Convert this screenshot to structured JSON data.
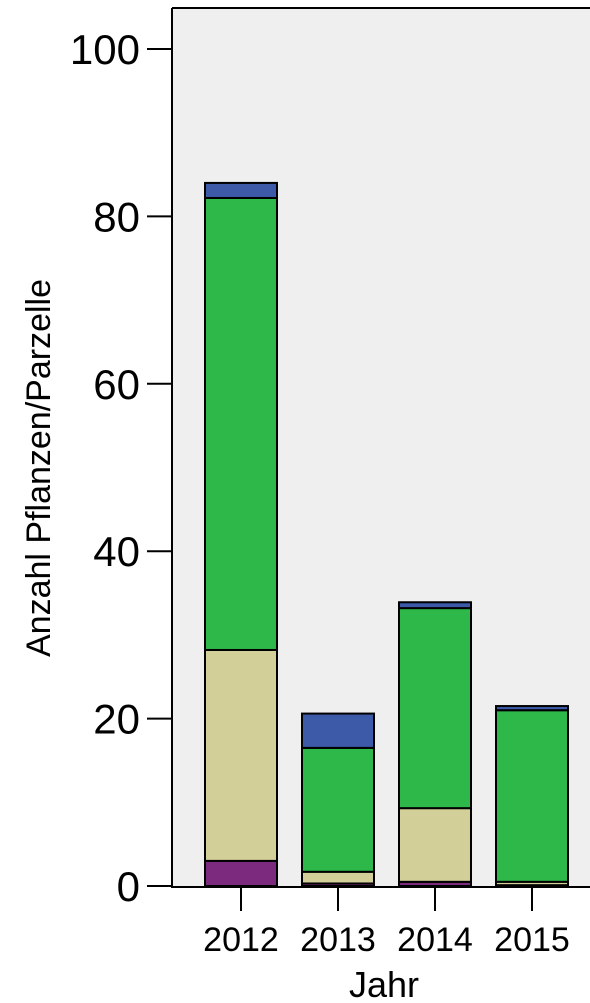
{
  "chart_data": {
    "type": "bar",
    "stacked": true,
    "title": "",
    "xlabel": "Jahr",
    "ylabel": "Anzahl Pflanzen/Parzelle",
    "ylim": [
      0,
      100
    ],
    "y_ticks": [
      0,
      20,
      40,
      60,
      80,
      100
    ],
    "grid": false,
    "legend": "none",
    "background": "#efefef",
    "categories": [
      "2012",
      "2013",
      "2014",
      "2015"
    ],
    "series": [
      {
        "color": "#7b2a7e",
        "values": [
          3.0,
          0.3,
          0.5,
          0.1
        ]
      },
      {
        "color": "#d3cf98",
        "values": [
          25.2,
          1.4,
          8.8,
          0.4
        ]
      },
      {
        "color": "#2fb84a",
        "values": [
          54.0,
          14.8,
          23.9,
          20.5
        ]
      },
      {
        "color": "#3c5aa8",
        "values": [
          1.8,
          4.1,
          0.7,
          0.5
        ]
      }
    ]
  }
}
